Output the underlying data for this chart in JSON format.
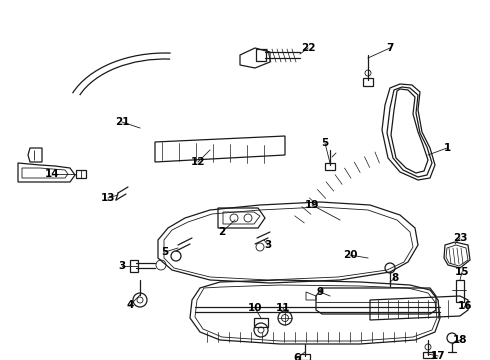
{
  "bg_color": "#ffffff",
  "line_color": "#1a1a1a",
  "label_color": "#000000",
  "font_size": 7.5,
  "figw": 4.9,
  "figh": 3.6,
  "dpi": 100
}
